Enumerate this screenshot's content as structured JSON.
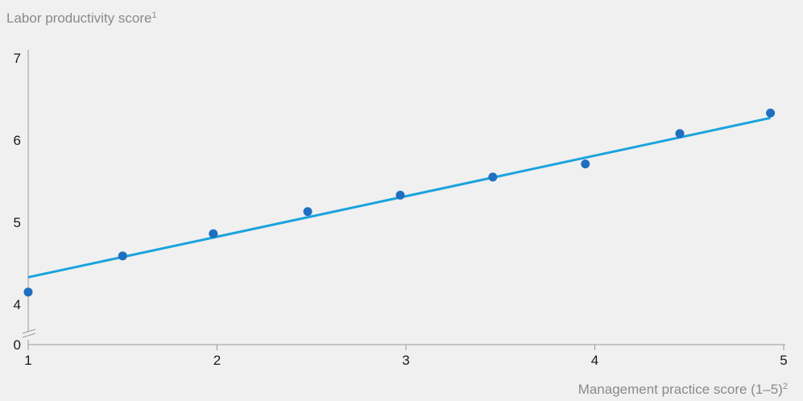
{
  "chart_data": {
    "type": "scatter",
    "ylabel": "Labor productivity score",
    "ylabel_sup": "1",
    "xlabel": "Management practice score (1–5)",
    "xlabel_sup": "2",
    "xlim": [
      1,
      5
    ],
    "ylim": [
      4,
      7
    ],
    "y_axis_break": true,
    "x_ticks": [
      "1",
      "2",
      "3",
      "4",
      "5"
    ],
    "y_ticks": [
      "0",
      "4",
      "5",
      "6",
      "7"
    ],
    "grid": false,
    "series": [
      {
        "points": [
          {
            "x": 1.0,
            "y": 4.15
          },
          {
            "x": 1.5,
            "y": 4.59
          },
          {
            "x": 1.98,
            "y": 4.86
          },
          {
            "x": 2.48,
            "y": 5.13
          },
          {
            "x": 2.97,
            "y": 5.33
          },
          {
            "x": 3.46,
            "y": 5.55
          },
          {
            "x": 3.95,
            "y": 5.71
          },
          {
            "x": 4.45,
            "y": 6.08
          },
          {
            "x": 4.93,
            "y": 6.33
          }
        ],
        "color": "#1f6fc0"
      }
    ],
    "trendline": {
      "x": [
        1.0,
        4.93
      ],
      "y": [
        4.33,
        6.27
      ],
      "color": "#1aa3dc"
    }
  }
}
